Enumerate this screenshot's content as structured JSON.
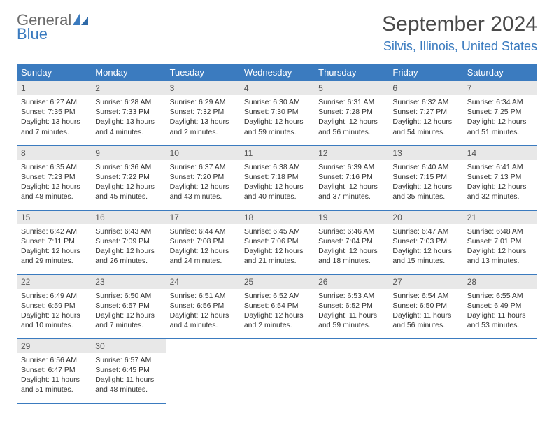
{
  "logo": {
    "top": "General",
    "bottom": "Blue"
  },
  "title": "September 2024",
  "location": "Silvis, Illinois, United States",
  "colors": {
    "header_bg": "#3b7bbf",
    "header_text": "#ffffff",
    "daynum_bg": "#e8e8e8",
    "border": "#3b7bbf",
    "logo_gray": "#6b6b6b",
    "logo_blue": "#3b7bbf"
  },
  "weekdays": [
    "Sunday",
    "Monday",
    "Tuesday",
    "Wednesday",
    "Thursday",
    "Friday",
    "Saturday"
  ],
  "weeks": [
    [
      {
        "n": "1",
        "sr": "6:27 AM",
        "ss": "7:35 PM",
        "dl": "13 hours and 7 minutes."
      },
      {
        "n": "2",
        "sr": "6:28 AM",
        "ss": "7:33 PM",
        "dl": "13 hours and 4 minutes."
      },
      {
        "n": "3",
        "sr": "6:29 AM",
        "ss": "7:32 PM",
        "dl": "13 hours and 2 minutes."
      },
      {
        "n": "4",
        "sr": "6:30 AM",
        "ss": "7:30 PM",
        "dl": "12 hours and 59 minutes."
      },
      {
        "n": "5",
        "sr": "6:31 AM",
        "ss": "7:28 PM",
        "dl": "12 hours and 56 minutes."
      },
      {
        "n": "6",
        "sr": "6:32 AM",
        "ss": "7:27 PM",
        "dl": "12 hours and 54 minutes."
      },
      {
        "n": "7",
        "sr": "6:34 AM",
        "ss": "7:25 PM",
        "dl": "12 hours and 51 minutes."
      }
    ],
    [
      {
        "n": "8",
        "sr": "6:35 AM",
        "ss": "7:23 PM",
        "dl": "12 hours and 48 minutes."
      },
      {
        "n": "9",
        "sr": "6:36 AM",
        "ss": "7:22 PM",
        "dl": "12 hours and 45 minutes."
      },
      {
        "n": "10",
        "sr": "6:37 AM",
        "ss": "7:20 PM",
        "dl": "12 hours and 43 minutes."
      },
      {
        "n": "11",
        "sr": "6:38 AM",
        "ss": "7:18 PM",
        "dl": "12 hours and 40 minutes."
      },
      {
        "n": "12",
        "sr": "6:39 AM",
        "ss": "7:16 PM",
        "dl": "12 hours and 37 minutes."
      },
      {
        "n": "13",
        "sr": "6:40 AM",
        "ss": "7:15 PM",
        "dl": "12 hours and 35 minutes."
      },
      {
        "n": "14",
        "sr": "6:41 AM",
        "ss": "7:13 PM",
        "dl": "12 hours and 32 minutes."
      }
    ],
    [
      {
        "n": "15",
        "sr": "6:42 AM",
        "ss": "7:11 PM",
        "dl": "12 hours and 29 minutes."
      },
      {
        "n": "16",
        "sr": "6:43 AM",
        "ss": "7:09 PM",
        "dl": "12 hours and 26 minutes."
      },
      {
        "n": "17",
        "sr": "6:44 AM",
        "ss": "7:08 PM",
        "dl": "12 hours and 24 minutes."
      },
      {
        "n": "18",
        "sr": "6:45 AM",
        "ss": "7:06 PM",
        "dl": "12 hours and 21 minutes."
      },
      {
        "n": "19",
        "sr": "6:46 AM",
        "ss": "7:04 PM",
        "dl": "12 hours and 18 minutes."
      },
      {
        "n": "20",
        "sr": "6:47 AM",
        "ss": "7:03 PM",
        "dl": "12 hours and 15 minutes."
      },
      {
        "n": "21",
        "sr": "6:48 AM",
        "ss": "7:01 PM",
        "dl": "12 hours and 13 minutes."
      }
    ],
    [
      {
        "n": "22",
        "sr": "6:49 AM",
        "ss": "6:59 PM",
        "dl": "12 hours and 10 minutes."
      },
      {
        "n": "23",
        "sr": "6:50 AM",
        "ss": "6:57 PM",
        "dl": "12 hours and 7 minutes."
      },
      {
        "n": "24",
        "sr": "6:51 AM",
        "ss": "6:56 PM",
        "dl": "12 hours and 4 minutes."
      },
      {
        "n": "25",
        "sr": "6:52 AM",
        "ss": "6:54 PM",
        "dl": "12 hours and 2 minutes."
      },
      {
        "n": "26",
        "sr": "6:53 AM",
        "ss": "6:52 PM",
        "dl": "11 hours and 59 minutes."
      },
      {
        "n": "27",
        "sr": "6:54 AM",
        "ss": "6:50 PM",
        "dl": "11 hours and 56 minutes."
      },
      {
        "n": "28",
        "sr": "6:55 AM",
        "ss": "6:49 PM",
        "dl": "11 hours and 53 minutes."
      }
    ],
    [
      {
        "n": "29",
        "sr": "6:56 AM",
        "ss": "6:47 PM",
        "dl": "11 hours and 51 minutes."
      },
      {
        "n": "30",
        "sr": "6:57 AM",
        "ss": "6:45 PM",
        "dl": "11 hours and 48 minutes."
      },
      null,
      null,
      null,
      null,
      null
    ]
  ],
  "labels": {
    "sunrise": "Sunrise:",
    "sunset": "Sunset:",
    "daylight": "Daylight:"
  }
}
